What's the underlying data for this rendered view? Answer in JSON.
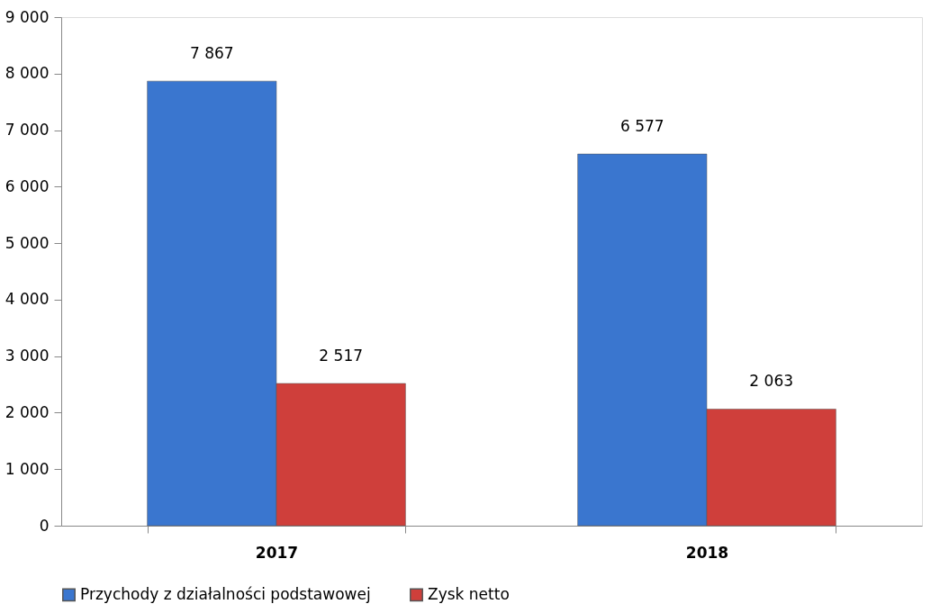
{
  "chart_data": {
    "type": "bar",
    "categories": [
      "2017",
      "2018"
    ],
    "series": [
      {
        "name": "Przychody z działalności podstawowej",
        "color": "#3a76cf",
        "values": [
          7867,
          6577
        ],
        "value_labels": [
          "7 867",
          "6 577"
        ]
      },
      {
        "name": "Zysk netto",
        "color": "#cf3f3b",
        "values": [
          2517,
          2063
        ],
        "value_labels": [
          "2 517",
          "2 063"
        ]
      }
    ],
    "ylim": [
      0,
      9000
    ],
    "yticks": [
      0,
      {
        "value": 1000,
        "label": "1 000"
      },
      {
        "value": 2000,
        "label": "2 000"
      },
      {
        "value": 3000,
        "label": "3 000"
      },
      {
        "value": 4000,
        "label": "4 000"
      },
      {
        "value": 5000,
        "label": "5 000"
      },
      {
        "value": 6000,
        "label": "6 000"
      },
      {
        "value": 7000,
        "label": "7 000"
      },
      {
        "value": 8000,
        "label": "8 000"
      },
      {
        "value": 9000,
        "label": "9 000"
      }
    ],
    "grid": false,
    "legend": "bottom"
  }
}
